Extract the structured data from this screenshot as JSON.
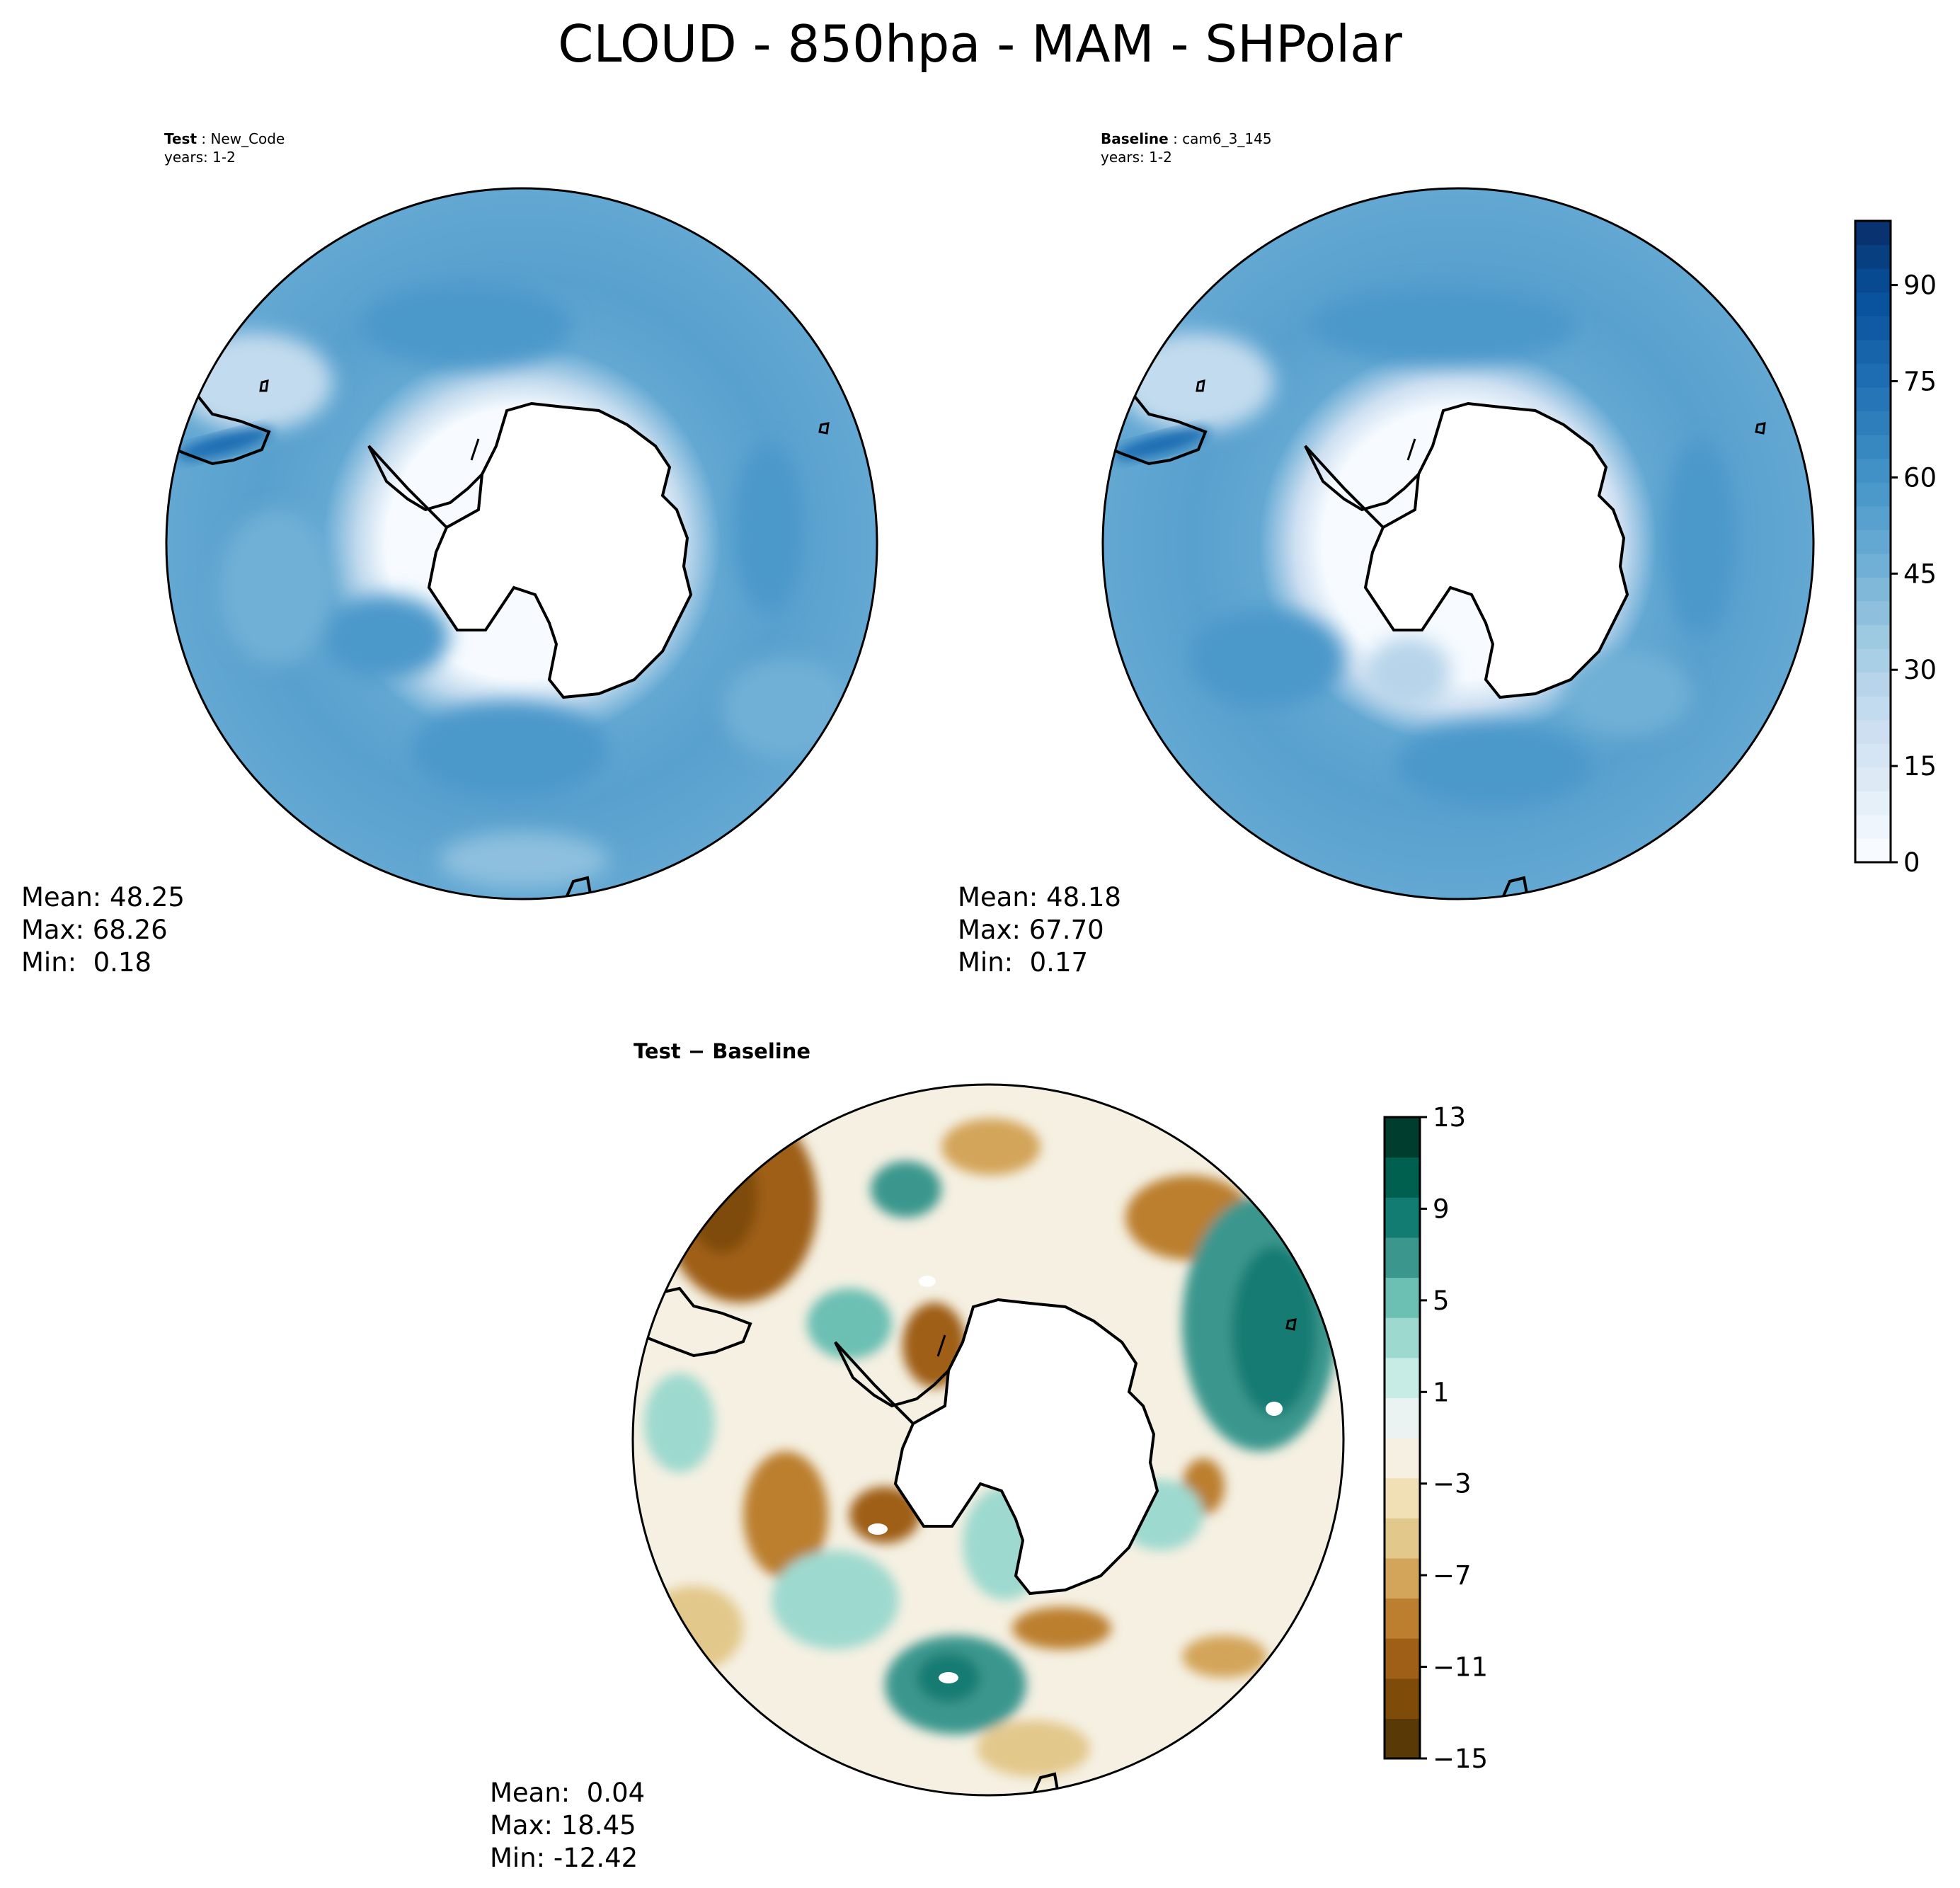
{
  "figure": {
    "title": "CLOUD - 850hpa - MAM - SHPolar"
  },
  "panels": {
    "test": {
      "label_bold": "Test",
      "label_sep": " : ",
      "label_value": "New_Code",
      "years": "years: 1-2",
      "stats": {
        "mean": "Mean: 48.25",
        "max": "Max: 68.26",
        "min": "Min:  0.18"
      }
    },
    "baseline": {
      "label_bold": "Baseline",
      "label_sep": " : ",
      "label_value": "cam6_3_145",
      "years": "years: 1-2",
      "stats": {
        "mean": "Mean: 48.18",
        "max": "Max: 67.70",
        "min": "Min:  0.17"
      }
    },
    "diff": {
      "label_bold": "Test − Baseline",
      "stats": {
        "mean": "Mean:  0.04",
        "max": "Max: 18.45",
        "min": "Min: -12.42"
      }
    }
  },
  "colorbars": {
    "main": {
      "colors": [
        "#f7fbff",
        "#eff5fc",
        "#e6f0f9",
        "#dee9f6",
        "#d5e5f4",
        "#cddff1",
        "#c3dbee",
        "#b7d4ea",
        "#a8cfe5",
        "#9dc9e1",
        "#8ec0de",
        "#80b8da",
        "#71b0d6",
        "#63a8d3",
        "#58a0ce",
        "#4b98ca",
        "#4191c6",
        "#3787c0",
        "#2e7ebb",
        "#2676b7",
        "#1e6db2",
        "#1764ab",
        "#0f5aa3",
        "#09529d",
        "#084a91",
        "#083f80",
        "#083370"
      ],
      "ticks": [
        "0",
        "15",
        "30",
        "45",
        "60",
        "75",
        "90"
      ],
      "tick_values": [
        0,
        15,
        30,
        45,
        60,
        75,
        90
      ],
      "vmin": 0,
      "vmax": 100
    },
    "diff": {
      "colors": [
        "#593a07",
        "#7e4b09",
        "#9f5f17",
        "#bb7f2f",
        "#d3a55a",
        "#e3c88b",
        "#f1e0b6",
        "#f5f0e2",
        "#eaf3f2",
        "#c7ebe5",
        "#9ed9cf",
        "#6cbfb3",
        "#3b978e",
        "#127c73",
        "#00604f",
        "#003d2f"
      ],
      "ticks": [
        "13",
        "9",
        "5",
        "1",
        "−3",
        "−7",
        "−11",
        "−15"
      ],
      "tick_values": [
        13,
        9,
        5,
        1,
        -3,
        -7,
        -11,
        -15
      ],
      "vmin": -15,
      "vmax": 13
    }
  }
}
